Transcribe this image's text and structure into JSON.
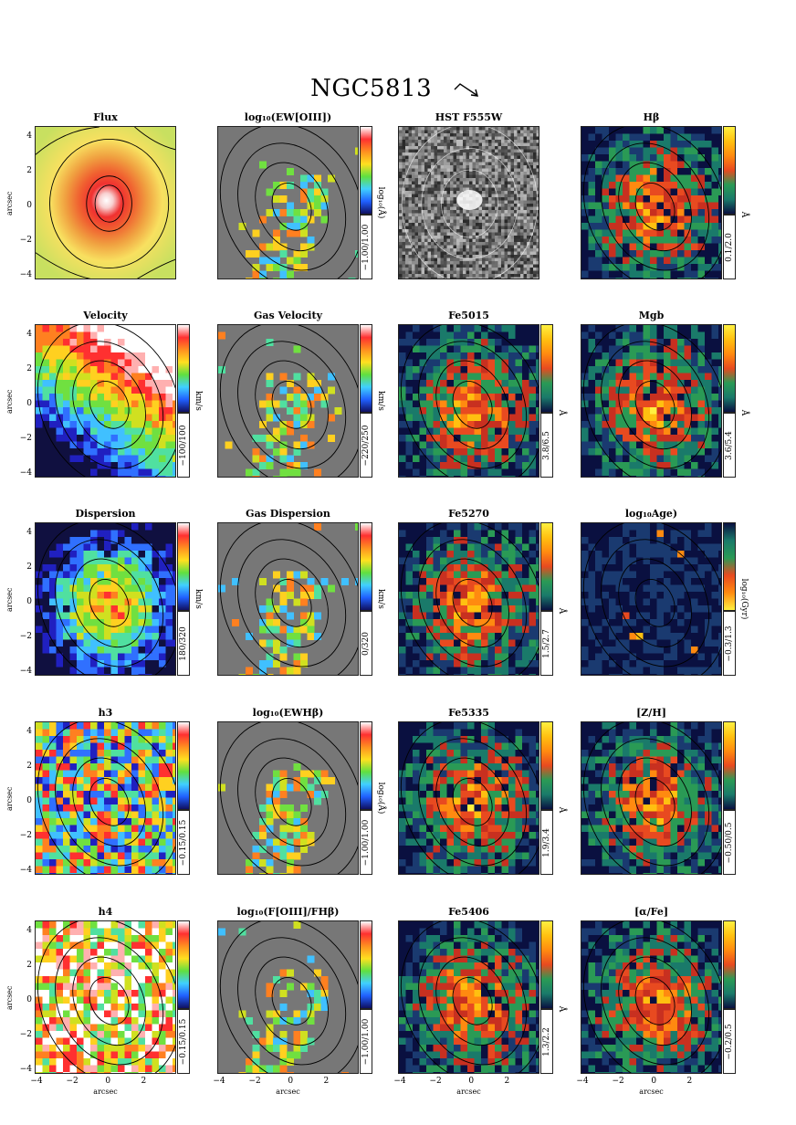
{
  "figure": {
    "title": "NGC5813",
    "arrow_icon": "north-east-arrow"
  },
  "axes": {
    "y_ticks": [
      "4",
      "2",
      "0",
      "−2",
      "−4"
    ],
    "x_ticks": [
      "−4",
      "−2",
      "0",
      "2"
    ],
    "y_title": "arcsec",
    "x_title": "arcsec"
  },
  "colors": {
    "gas_background": "#777777",
    "contour": "#000000"
  },
  "rows": [
    {
      "panels": [
        {
          "title": "Flux",
          "kind": "flux",
          "colorbar": null,
          "range": "",
          "unit": ""
        },
        {
          "title": "log₁₀(EW[OIII])",
          "kind": "gas",
          "colorbar": "rainbow",
          "range": "−1.00/1.00",
          "unit": "log₁₀(Å)"
        },
        {
          "title": "HST F555W",
          "kind": "hst",
          "colorbar": null,
          "range": "",
          "unit": ""
        },
        {
          "title": "Hβ",
          "kind": "stellar",
          "colorbar": "population",
          "range": "0.1/2.0",
          "unit": "Å"
        }
      ]
    },
    {
      "panels": [
        {
          "title": "Velocity",
          "kind": "velocity",
          "colorbar": "rainbow",
          "range": "−100/100",
          "unit": "km/s"
        },
        {
          "title": "Gas Velocity",
          "kind": "gas",
          "colorbar": "rainbow",
          "range": "−220/250",
          "unit": "km/s"
        },
        {
          "title": "Fe5015",
          "kind": "stellar",
          "colorbar": "population",
          "range": "3.8/6.5",
          "unit": "Å"
        },
        {
          "title": "Mgb",
          "kind": "stellar",
          "colorbar": "population",
          "range": "3.6/5.4",
          "unit": "Å"
        }
      ]
    },
    {
      "panels": [
        {
          "title": "Dispersion",
          "kind": "dispersion",
          "colorbar": "rainbow",
          "range": "180/320",
          "unit": "km/s"
        },
        {
          "title": "Gas Dispersion",
          "kind": "gas",
          "colorbar": "rainbow",
          "range": "0/320",
          "unit": "km/s"
        },
        {
          "title": "Fe5270",
          "kind": "stellar",
          "colorbar": "population",
          "range": "1.5/2.7",
          "unit": "Å"
        },
        {
          "title": "log₁₀Age)",
          "kind": "age",
          "colorbar": "population-rev",
          "range": "−0.3/1.3",
          "unit": "log₁₀(Gyr)"
        }
      ]
    },
    {
      "panels": [
        {
          "title": "h3",
          "kind": "h3",
          "colorbar": "rainbow",
          "range": "−0.15/0.15",
          "unit": ""
        },
        {
          "title": "log₁₀(EWHβ)",
          "kind": "gas",
          "colorbar": "rainbow",
          "range": "−1.00/1.00",
          "unit": "log₁₀(Å)"
        },
        {
          "title": "Fe5335",
          "kind": "stellar",
          "colorbar": "population",
          "range": "1.9/3.4",
          "unit": "Å"
        },
        {
          "title": "[Z/H]",
          "kind": "stellar",
          "colorbar": "population",
          "range": "−0.50/0.5",
          "unit": ""
        }
      ]
    },
    {
      "panels": [
        {
          "title": "h4",
          "kind": "h4",
          "colorbar": "rainbow",
          "range": "−0.15/0.15",
          "unit": ""
        },
        {
          "title": "log₁₀(F[OIII]/FHβ)",
          "kind": "gas",
          "colorbar": "rainbow",
          "range": "−1.00/1.00",
          "unit": ""
        },
        {
          "title": "Fe5406",
          "kind": "stellar",
          "colorbar": "population",
          "range": "1.3/2.2",
          "unit": "Å"
        },
        {
          "title": "[α/Fe]",
          "kind": "stellar",
          "colorbar": "population",
          "range": "−0.2/0.5",
          "unit": ""
        }
      ]
    }
  ]
}
